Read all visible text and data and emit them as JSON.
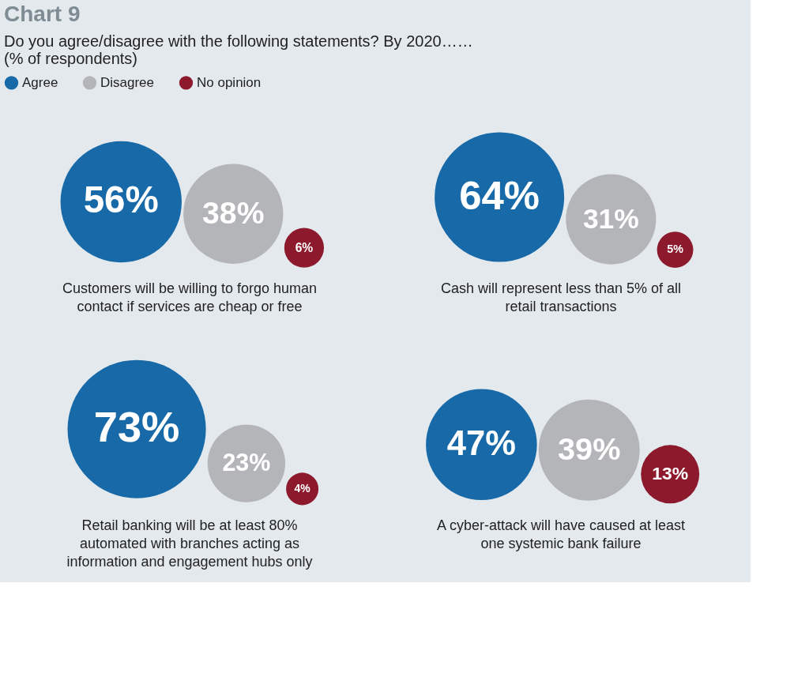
{
  "chart_data": {
    "type": "other",
    "title": "Chart 9",
    "subtitle": "Do you agree/disagree with the following statements? By 2020……",
    "annotations": [
      "(% of respondents)"
    ],
    "legend": "top left",
    "categories": [
      "Customers will be willing to forgo human contact if services are cheap or free",
      "Cash will represent less than 5% of all retail transactions",
      "Retail banking will be at least 80% automated with branches acting as information and engagement hubs only",
      "A cyber-attack will have caused at least one systemic bank failure"
    ],
    "series": [
      {
        "name": "Agree",
        "color": "#1769a8",
        "values": [
          56,
          64,
          73,
          47
        ],
        "value_labels": [
          "56%",
          "64%",
          "73%",
          "47%"
        ]
      },
      {
        "name": "Disagree",
        "color": "#b4b5b8",
        "values": [
          38,
          31,
          23,
          39
        ],
        "value_labels": [
          "38%",
          "31%",
          "23%",
          "39%"
        ]
      },
      {
        "name": "No opinion",
        "color": "#8c1a2c",
        "values": [
          6,
          5,
          4,
          13
        ],
        "value_labels": [
          "6%",
          "5%",
          "4%",
          "13%"
        ]
      }
    ]
  }
}
